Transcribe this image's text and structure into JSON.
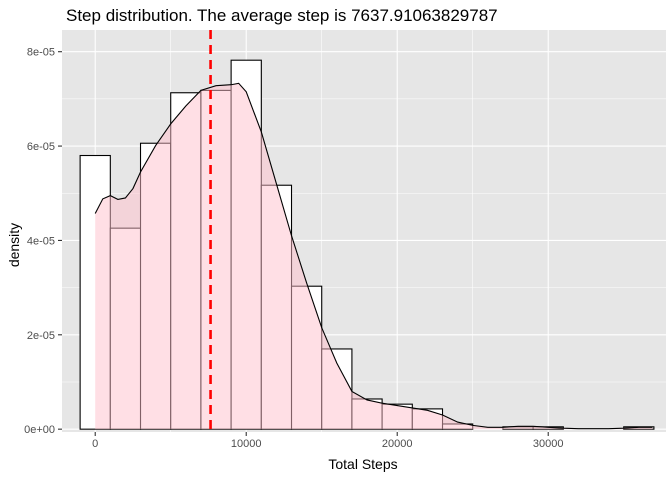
{
  "chart_data": {
    "type": "bar",
    "title": "Step distribution. The average step is  7637.91063829787",
    "xlabel": "Total Steps",
    "ylabel": "density",
    "xlim": [
      -2200,
      37800
    ],
    "ylim": [
      -6e-07,
      8.46e-05
    ],
    "x_ticks": [
      0,
      10000,
      20000,
      30000
    ],
    "x_tick_labels": [
      "0",
      "10000",
      "20000",
      "30000"
    ],
    "y_ticks": [
      0,
      2e-05,
      4e-05,
      6e-05,
      8e-05
    ],
    "y_tick_labels": [
      "0e+00",
      "2e-05",
      "4e-05",
      "6e-05",
      "8e-05"
    ],
    "grid": true,
    "mean_line": 7637.91063829787,
    "bin_width": 2000,
    "bins": [
      {
        "x_start": -1000,
        "x_end": 1000,
        "density": 5.8e-05
      },
      {
        "x_start": 1000,
        "x_end": 3000,
        "density": 4.26e-05
      },
      {
        "x_start": 3000,
        "x_end": 5000,
        "density": 6.06e-05
      },
      {
        "x_start": 5000,
        "x_end": 7000,
        "density": 7.13e-05
      },
      {
        "x_start": 7000,
        "x_end": 9000,
        "density": 7.18e-05
      },
      {
        "x_start": 9000,
        "x_end": 11000,
        "density": 7.82e-05
      },
      {
        "x_start": 11000,
        "x_end": 13000,
        "density": 5.17e-05
      },
      {
        "x_start": 13000,
        "x_end": 15000,
        "density": 3.03e-05
      },
      {
        "x_start": 15000,
        "x_end": 17000,
        "density": 1.7e-05
      },
      {
        "x_start": 17000,
        "x_end": 19000,
        "density": 6.4e-06
      },
      {
        "x_start": 19000,
        "x_end": 21000,
        "density": 5.3e-06
      },
      {
        "x_start": 21000,
        "x_end": 23000,
        "density": 4.3e-06
      },
      {
        "x_start": 23000,
        "x_end": 25000,
        "density": 1.1e-06
      },
      {
        "x_start": 25000,
        "x_end": 27000,
        "density": 0.0
      },
      {
        "x_start": 27000,
        "x_end": 29000,
        "density": 5e-07
      },
      {
        "x_start": 29000,
        "x_end": 31000,
        "density": 5e-07
      },
      {
        "x_start": 31000,
        "x_end": 33000,
        "density": 0.0
      },
      {
        "x_start": 33000,
        "x_end": 35000,
        "density": 0.0
      },
      {
        "x_start": 35000,
        "x_end": 37000,
        "density": 5e-07
      }
    ],
    "density_curve": {
      "x": [
        0,
        500,
        1000,
        1500,
        2000,
        2500,
        3000,
        4000,
        5000,
        6000,
        7000,
        8000,
        9000,
        9500,
        10000,
        11000,
        12000,
        13000,
        14000,
        15000,
        16000,
        17000,
        18000,
        19000,
        20000,
        21000,
        22000,
        23000,
        24000,
        25000,
        26000,
        27000,
        28000,
        29000,
        30000,
        31000,
        32000,
        33000,
        34000,
        35000,
        36000,
        36900
      ],
      "y": [
        4.57e-05,
        4.88e-05,
        4.95e-05,
        4.87e-05,
        4.9e-05,
        5.1e-05,
        5.45e-05,
        6.01e-05,
        6.47e-05,
        6.85e-05,
        7.18e-05,
        7.28e-05,
        7.3e-05,
        7.33e-05,
        7.15e-05,
        6.3e-05,
        5.2e-05,
        4.1e-05,
        3.1e-05,
        2.15e-05,
        1.4e-05,
        8e-06,
        6.2e-06,
        5.5e-06,
        5e-06,
        4.5e-06,
        4e-06,
        3e-06,
        1.5e-06,
        8e-07,
        4e-07,
        4e-07,
        6e-07,
        6e-07,
        4e-07,
        2e-07,
        1e-07,
        1e-07,
        1e-07,
        2e-07,
        4e-07,
        4e-07
      ]
    },
    "colors": {
      "panel_background": "#e6e6e6",
      "grid": "#ffffff",
      "bar_fill": "#ffffff",
      "bar_outline": "#000000",
      "density_fill": "#ffc0cb",
      "density_line": "#000000",
      "mean_line": "#ff0000"
    }
  }
}
